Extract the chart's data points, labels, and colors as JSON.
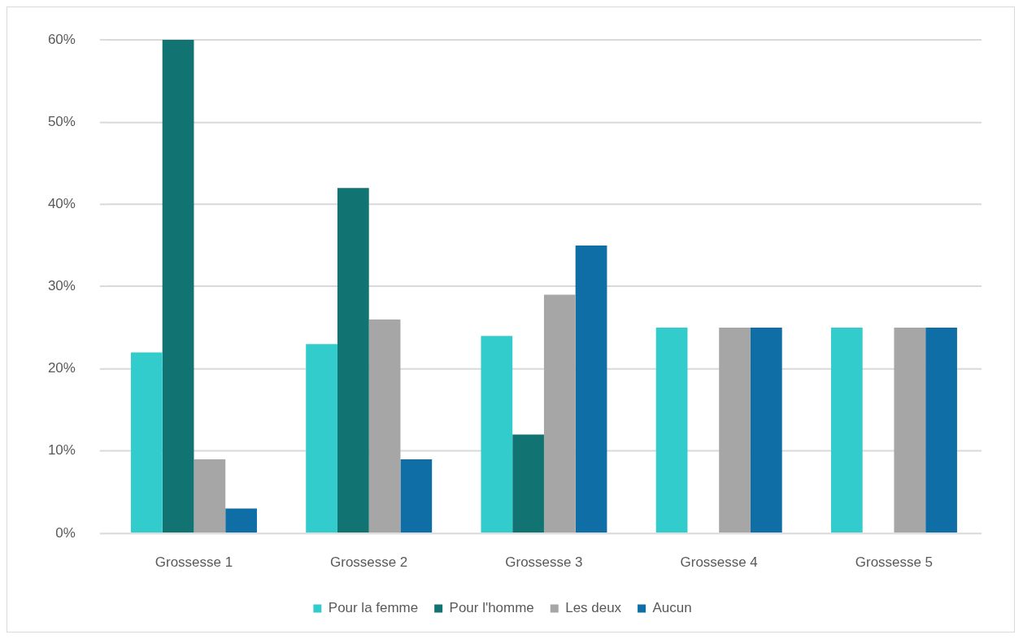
{
  "chart_data": {
    "type": "bar",
    "categories": [
      "Grossesse 1",
      "Grossesse 2",
      "Grossesse 3",
      "Grossesse 4",
      "Grossesse 5"
    ],
    "series": [
      {
        "name": "Pour la femme",
        "color": "#33cccc",
        "values": [
          22,
          23,
          24,
          25,
          25
        ]
      },
      {
        "name": "Pour l'homme",
        "color": "#127373",
        "values": [
          60,
          42,
          12,
          0,
          0
        ]
      },
      {
        "name": "Les deux",
        "color": "#a6a6a6",
        "values": [
          9,
          26,
          29,
          25,
          25
        ]
      },
      {
        "name": "Aucun",
        "color": "#0e6ea5",
        "values": [
          3,
          9,
          35,
          25,
          25
        ]
      }
    ],
    "ylim": [
      0,
      60
    ],
    "yticks": [
      {
        "value": 0,
        "label": "0%"
      },
      {
        "value": 10,
        "label": "10%"
      },
      {
        "value": 20,
        "label": "20%"
      },
      {
        "value": 30,
        "label": "30%"
      },
      {
        "value": 40,
        "label": "40%"
      },
      {
        "value": 50,
        "label": "50%"
      },
      {
        "value": 60,
        "label": "60%"
      }
    ],
    "grid": "y",
    "legend": "bottom"
  }
}
